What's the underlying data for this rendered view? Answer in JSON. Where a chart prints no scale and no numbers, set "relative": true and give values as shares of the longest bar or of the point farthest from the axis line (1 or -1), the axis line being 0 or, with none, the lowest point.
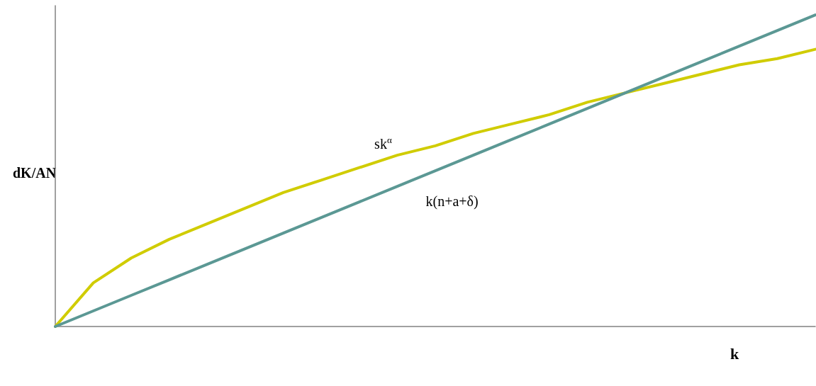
{
  "chart_data": {
    "type": "line",
    "xlabel": "k",
    "ylabel": "dK/AN",
    "relative": true,
    "marker": "none",
    "line_style": "solid",
    "grid": false,
    "tick_labels": false,
    "categories": [
      null,
      null,
      null,
      null,
      null,
      null,
      null,
      null,
      null,
      null,
      null,
      null,
      null,
      null,
      null,
      null,
      null,
      null,
      null,
      null,
      null
    ],
    "series": [
      {
        "name": "sk$^{α}$",
        "color": "#d0cc00",
        "values": [
          0,
          0.14,
          0.22,
          0.28,
          0.33,
          0.38,
          0.43,
          0.47,
          0.51,
          0.55,
          0.58,
          0.62,
          0.65,
          0.68,
          0.72,
          0.75,
          0.78,
          0.81,
          0.84,
          0.86,
          0.89
        ]
      },
      {
        "name": "k(n+a+δ)",
        "color": "#5b9894",
        "values": [
          0,
          0.05,
          0.1,
          0.15,
          0.2,
          0.25,
          0.3,
          0.35,
          0.4,
          0.45,
          0.5,
          0.55,
          0.6,
          0.65,
          0.7,
          0.75,
          0.8,
          0.85,
          0.9,
          0.95,
          1
        ]
      }
    ]
  }
}
